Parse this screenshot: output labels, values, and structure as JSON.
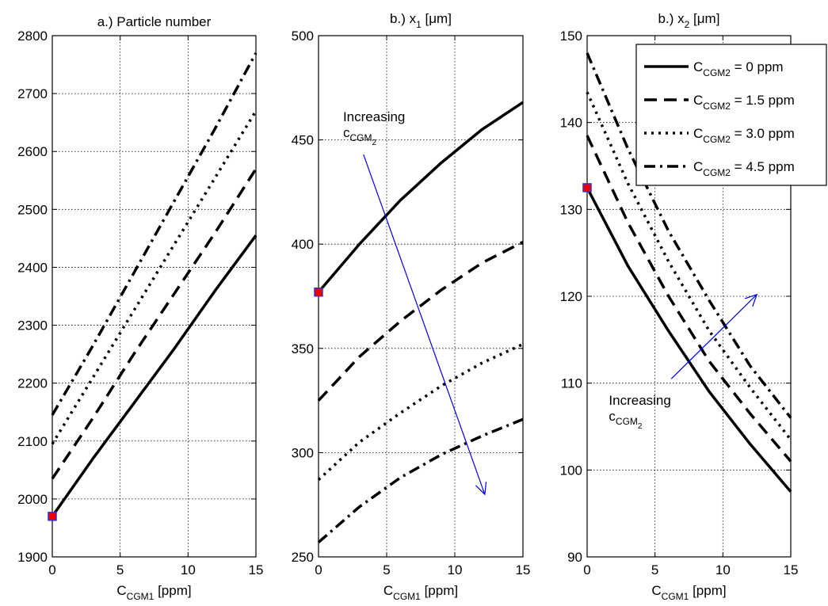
{
  "chart_data": [
    {
      "type": "line",
      "title": "a.) Particle number",
      "xlabel": {
        "main": "C",
        "sub": "CGM1",
        "tail": " [ppm]"
      },
      "xlim": [
        0,
        15
      ],
      "ylim": [
        1900,
        2800
      ],
      "xticks": [
        0,
        5,
        10,
        15
      ],
      "yticks": [
        1900,
        2000,
        2100,
        2200,
        2300,
        2400,
        2500,
        2600,
        2700,
        2800
      ],
      "grid": true,
      "series": [
        {
          "style": "solid",
          "x": [
            0,
            3,
            6,
            9,
            12,
            15
          ],
          "y": [
            1970,
            2070,
            2165,
            2260,
            2360,
            2455
          ]
        },
        {
          "style": "dashed",
          "x": [
            0,
            3,
            6,
            9,
            12,
            15
          ],
          "y": [
            2035,
            2140,
            2250,
            2355,
            2460,
            2570
          ]
        },
        {
          "style": "dotted",
          "x": [
            0,
            3,
            6,
            9,
            12,
            15
          ],
          "y": [
            2095,
            2210,
            2325,
            2440,
            2555,
            2670
          ]
        },
        {
          "style": "dashdot",
          "x": [
            0,
            3,
            6,
            9,
            12,
            15
          ],
          "y": [
            2145,
            2265,
            2390,
            2515,
            2640,
            2770
          ]
        }
      ],
      "marker": {
        "x": 0,
        "y": 1970,
        "fill": "#ee0000",
        "edge": "#3333cc"
      }
    },
    {
      "type": "line",
      "title": {
        "main": "b.) x",
        "sub": "1",
        "tail": " [μm]"
      },
      "xlabel": {
        "main": "C",
        "sub": "CGM1",
        "tail": " [ppm]"
      },
      "xlim": [
        0,
        15
      ],
      "ylim": [
        250,
        500
      ],
      "xticks": [
        0,
        5,
        10,
        15
      ],
      "yticks": [
        250,
        300,
        350,
        400,
        450,
        500
      ],
      "grid": true,
      "series": [
        {
          "style": "solid",
          "x": [
            0,
            3,
            6,
            9,
            12,
            15
          ],
          "y": [
            377,
            400,
            421,
            439,
            455,
            468
          ]
        },
        {
          "style": "dashed",
          "x": [
            0,
            3,
            6,
            9,
            12,
            15
          ],
          "y": [
            325,
            346,
            363,
            378,
            391,
            401
          ]
        },
        {
          "style": "dotted",
          "x": [
            0,
            3,
            6,
            9,
            12,
            15
          ],
          "y": [
            287,
            305,
            319,
            332,
            343,
            352
          ]
        },
        {
          "style": "dashdot",
          "x": [
            0,
            3,
            6,
            9,
            12,
            15
          ],
          "y": [
            257,
            274,
            288,
            299,
            308,
            316
          ]
        }
      ],
      "marker": {
        "x": 0,
        "y": 377,
        "fill": "#ee0000",
        "edge": "#3333cc"
      },
      "annotation": {
        "text": "Increasing",
        "sub_main": "c",
        "sub_sub": "CGM",
        "sub_sub2": "2",
        "text_at": [
          1.8,
          459
        ],
        "arrow_from": [
          3.3,
          443
        ],
        "arrow_to": [
          12.2,
          280
        ],
        "color": "#0000ee"
      }
    },
    {
      "type": "line",
      "title": {
        "main": "b.) x",
        "sub": "2",
        "tail": " [μm]"
      },
      "xlabel": {
        "main": "C",
        "sub": "CGM1",
        "tail": " [ppm]"
      },
      "xlim": [
        0,
        15
      ],
      "ylim": [
        90,
        150
      ],
      "xticks": [
        0,
        5,
        10,
        15
      ],
      "yticks": [
        90,
        100,
        110,
        120,
        130,
        140,
        150
      ],
      "grid": true,
      "series": [
        {
          "name": "C_CGM2 = 0 ppm",
          "style": "solid",
          "x": [
            0,
            3,
            6,
            9,
            12,
            15
          ],
          "y": [
            132.5,
            123.5,
            116.0,
            109.0,
            103.0,
            97.5
          ]
        },
        {
          "name": "C_CGM2 = 1.5 ppm",
          "style": "dashed",
          "x": [
            0,
            3,
            6,
            9,
            12,
            15
          ],
          "y": [
            138.5,
            128.5,
            120.0,
            112.5,
            106.5,
            101.0
          ]
        },
        {
          "name": "C_CGM2 = 3.0 ppm",
          "style": "dotted",
          "x": [
            0,
            3,
            6,
            9,
            12,
            15
          ],
          "y": [
            143.5,
            133.0,
            124.0,
            116.0,
            109.5,
            103.5
          ]
        },
        {
          "name": "C_CGM2 = 4.5 ppm",
          "style": "dashdot",
          "x": [
            0,
            3,
            6,
            9,
            12,
            15
          ],
          "y": [
            148.0,
            137.0,
            127.5,
            119.5,
            112.0,
            106.0
          ]
        }
      ],
      "marker": {
        "x": 0,
        "y": 132.5,
        "fill": "#ee0000",
        "edge": "#3333cc"
      },
      "legend": {
        "placement": "top-right",
        "entries": [
          {
            "main": "C",
            "sub": "CGM2",
            "tail": " = 0 ppm",
            "style": "solid"
          },
          {
            "main": "C",
            "sub": "CGM2",
            "tail": " = 1.5 ppm",
            "style": "dashed"
          },
          {
            "main": "C",
            "sub": "CGM2",
            "tail": " = 3.0 ppm",
            "style": "dotted"
          },
          {
            "main": "C",
            "sub": "CGM2",
            "tail": " = 4.5 ppm",
            "style": "dashdot"
          }
        ]
      },
      "annotation": {
        "text": "Increasing",
        "sub_main": "c",
        "sub_sub": "CGM",
        "sub_sub2": "2",
        "text_at": [
          1.6,
          107.5
        ],
        "arrow_from": [
          6.2,
          110.5
        ],
        "arrow_to": [
          12.5,
          120.2
        ],
        "color": "#0000ee"
      }
    }
  ]
}
